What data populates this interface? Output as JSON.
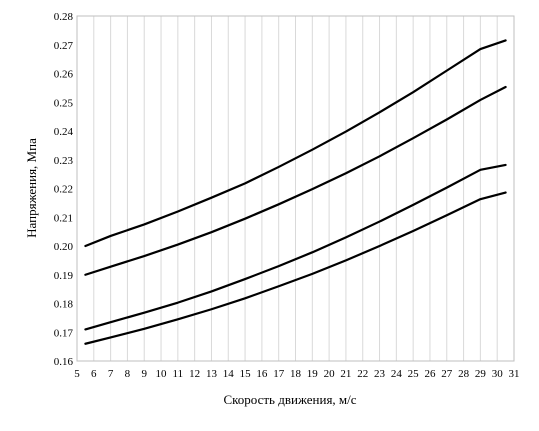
{
  "chart_data": {
    "type": "line",
    "xlabel": "Скорость движения, м/с",
    "ylabel": "Напряжения, Мпа",
    "xlim": [
      5,
      31
    ],
    "ylim": [
      0.16,
      0.28
    ],
    "x_ticks": [
      5,
      6,
      7,
      8,
      9,
      10,
      11,
      12,
      13,
      14,
      15,
      16,
      17,
      18,
      19,
      20,
      21,
      22,
      23,
      24,
      25,
      26,
      27,
      28,
      29,
      30,
      31
    ],
    "y_ticks": [
      0.16,
      0.17,
      0.18,
      0.19,
      0.2,
      0.21,
      0.22,
      0.23,
      0.24,
      0.25,
      0.26,
      0.27,
      0.28
    ],
    "y_tick_labels": [
      "0.16",
      "0.17",
      "0.18",
      "0.19",
      "0.20",
      "0.21",
      "0.22",
      "0.23",
      "0.24",
      "0.25",
      "0.26",
      "0.27",
      "0.28"
    ],
    "grid": "vertical",
    "legend": "none",
    "line_color": "#000000",
    "grid_color": "#d9d9d9",
    "series": [
      {
        "x": [
          5.5,
          7,
          9,
          11,
          13,
          15,
          17,
          19,
          21,
          23,
          25,
          27,
          29,
          30.5
        ],
        "values": [
          0.2,
          0.2035,
          0.2075,
          0.212,
          0.2168,
          0.2218,
          0.2275,
          0.2335,
          0.2398,
          0.2465,
          0.2535,
          0.261,
          0.2685,
          0.2715
        ]
      },
      {
        "x": [
          5.5,
          7,
          9,
          11,
          13,
          15,
          17,
          19,
          21,
          23,
          25,
          27,
          29,
          30.5
        ],
        "values": [
          0.19,
          0.1928,
          0.1965,
          0.2005,
          0.2048,
          0.2095,
          0.2145,
          0.2198,
          0.2253,
          0.2312,
          0.2375,
          0.244,
          0.2508,
          0.2553
        ]
      },
      {
        "x": [
          5.5,
          7,
          9,
          11,
          13,
          15,
          17,
          19,
          21,
          23,
          25,
          27,
          29,
          30.5
        ],
        "values": [
          0.171,
          0.1735,
          0.1768,
          0.1803,
          0.1842,
          0.1885,
          0.193,
          0.1978,
          0.203,
          0.2085,
          0.2143,
          0.2203,
          0.2265,
          0.2282
        ]
      },
      {
        "x": [
          5.5,
          7,
          9,
          11,
          13,
          15,
          17,
          19,
          21,
          23,
          25,
          27,
          29,
          30.5
        ],
        "values": [
          0.166,
          0.1682,
          0.1712,
          0.1745,
          0.178,
          0.1818,
          0.186,
          0.1903,
          0.195,
          0.2,
          0.2052,
          0.2107,
          0.2163,
          0.2186
        ]
      }
    ]
  }
}
